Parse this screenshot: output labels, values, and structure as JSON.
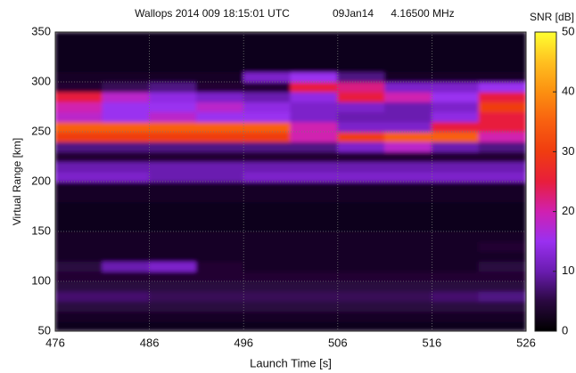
{
  "chart_data": {
    "type": "heatmap",
    "title": [
      "Wallops 2014 009 18:15:01 UTC",
      "09Jan14",
      "4.16500 MHz"
    ],
    "xlabel": "Launch Time [s]",
    "ylabel": "Virtual Range [km]",
    "colorbar_label": "SNR [dB]",
    "xlim": [
      476,
      526
    ],
    "xticks": [
      476,
      486,
      496,
      506,
      516,
      526
    ],
    "ylim": [
      50,
      350
    ],
    "yticks": [
      50,
      100,
      150,
      200,
      250,
      300,
      350
    ],
    "clim": [
      0,
      50
    ],
    "cticks": [
      0,
      10,
      20,
      30,
      40,
      50
    ],
    "colormap": [
      "#000000",
      "#2a0840",
      "#6a1cb0",
      "#9a30f0",
      "#d020b0",
      "#e81e3c",
      "#f03c10",
      "#f86010",
      "#fc9010",
      "#ffc020",
      "#ffff30"
    ],
    "grid": true,
    "xbins": [
      476,
      481,
      486,
      491,
      496,
      501,
      506,
      511,
      516,
      521,
      526
    ],
    "ybins": [
      50,
      60,
      70,
      80,
      90,
      100,
      110,
      120,
      130,
      140,
      150,
      160,
      170,
      180,
      190,
      200,
      210,
      220,
      230,
      240,
      250,
      260,
      270,
      280,
      290,
      300,
      310,
      320,
      330,
      340,
      350
    ],
    "z": [
      [
        2,
        2,
        2,
        2,
        2,
        2,
        2,
        2,
        2,
        2
      ],
      [
        3,
        3,
        3,
        3,
        3,
        3,
        3,
        3,
        3,
        3
      ],
      [
        5,
        5,
        5,
        5,
        5,
        5,
        5,
        5,
        5,
        5
      ],
      [
        7,
        7,
        6,
        6,
        6,
        6,
        6,
        6,
        7,
        8
      ],
      [
        5,
        5,
        5,
        5,
        5,
        5,
        5,
        5,
        5,
        5
      ],
      [
        4,
        4,
        4,
        4,
        4,
        4,
        4,
        4,
        4,
        4
      ],
      [
        5,
        10,
        12,
        4,
        3,
        3,
        3,
        3,
        3,
        5
      ],
      [
        3,
        3,
        3,
        3,
        3,
        3,
        3,
        3,
        3,
        3
      ],
      [
        3,
        3,
        3,
        3,
        3,
        3,
        3,
        3,
        3,
        4
      ],
      [
        3,
        3,
        3,
        3,
        3,
        3,
        3,
        3,
        3,
        3
      ],
      [
        2,
        2,
        2,
        2,
        2,
        2,
        2,
        2,
        2,
        2
      ],
      [
        2,
        2,
        2,
        2,
        2,
        2,
        2,
        2,
        2,
        2
      ],
      [
        2,
        2,
        2,
        2,
        2,
        2,
        2,
        2,
        2,
        2
      ],
      [
        3,
        3,
        3,
        3,
        3,
        3,
        3,
        3,
        3,
        3
      ],
      [
        3,
        3,
        3,
        3,
        3,
        3,
        3,
        3,
        3,
        3
      ],
      [
        12,
        12,
        10,
        10,
        12,
        12,
        12,
        12,
        12,
        12
      ],
      [
        10,
        10,
        10,
        10,
        10,
        10,
        10,
        10,
        10,
        10
      ],
      [
        4,
        4,
        4,
        4,
        4,
        4,
        4,
        4,
        4,
        4
      ],
      [
        8,
        8,
        8,
        8,
        8,
        8,
        12,
        18,
        10,
        8
      ],
      [
        30,
        30,
        30,
        30,
        30,
        20,
        30,
        35,
        35,
        20
      ],
      [
        35,
        35,
        35,
        35,
        35,
        20,
        12,
        12,
        25,
        25
      ],
      [
        18,
        15,
        18,
        15,
        15,
        12,
        10,
        10,
        14,
        25
      ],
      [
        20,
        15,
        15,
        18,
        14,
        12,
        12,
        10,
        12,
        30
      ],
      [
        25,
        18,
        14,
        12,
        10,
        14,
        25,
        20,
        15,
        25
      ],
      [
        4,
        6,
        8,
        4,
        4,
        25,
        22,
        12,
        12,
        15
      ],
      [
        3,
        3,
        3,
        3,
        12,
        15,
        8,
        3,
        3,
        3
      ],
      [
        2,
        2,
        2,
        2,
        2,
        2,
        2,
        2,
        2,
        2
      ],
      [
        2,
        2,
        2,
        2,
        2,
        2,
        2,
        2,
        2,
        2
      ],
      [
        2,
        2,
        2,
        2,
        2,
        2,
        2,
        2,
        2,
        2
      ],
      [
        2,
        2,
        2,
        2,
        2,
        2,
        2,
        2,
        2,
        2
      ]
    ]
  }
}
